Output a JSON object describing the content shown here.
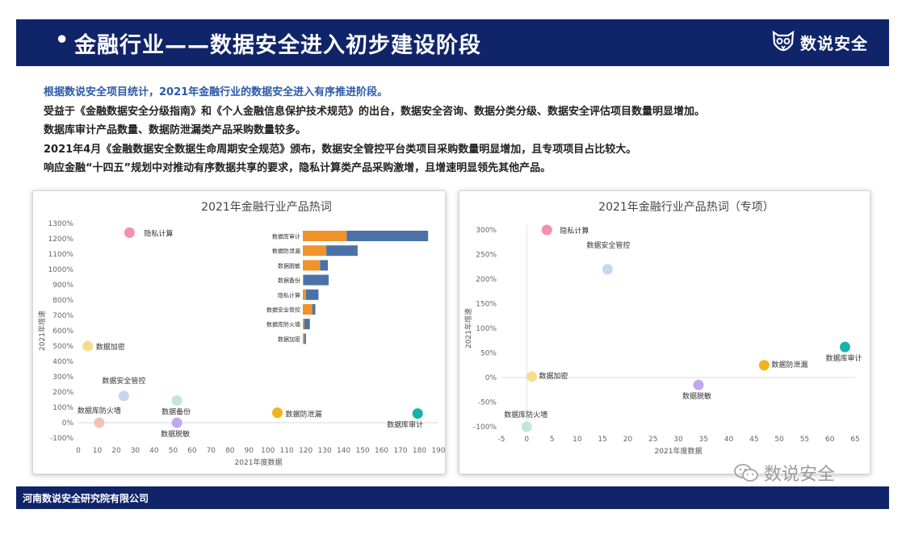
{
  "header": {
    "bullet": "•",
    "title": "金融行业——数据安全进入初步建设阶段",
    "logo_text": "数说安全"
  },
  "intro": {
    "lead": "根据数说安全项目统计，2021年金融行业的数据安全进入有序推进阶段。",
    "lines": [
      "受益于《金融数据安全分级指南》和《个人金融信息保护技术规范》的出台，数据安全咨询、数据分类分级、数据安全评估项目数量明显增加。",
      "数据库审计产品数量、数据防泄漏类产品采购数量较多。",
      "2021年4月《金融数据安全数据生命周期安全规范》颁布，数据安全管控平台类项目采购数量明显增加，且专项项目占比较大。",
      "响应金融“十四五”规划中对推动有序数据共享的要求，隐私计算类产品采购激增，且增速明显领先其他产品。"
    ]
  },
  "chart_data": [
    {
      "type": "scatter",
      "title": "2021年金融行业产品热词",
      "xlabel": "2021年度数据",
      "ylabel": "2021年增速",
      "xlim": [
        0,
        190
      ],
      "ylim": [
        -100,
        1300
      ],
      "x_ticks": [
        "0",
        "10",
        "20",
        "30",
        "40",
        "50",
        "60",
        "70",
        "80",
        "90",
        "100",
        "110",
        "120",
        "130",
        "140",
        "150",
        "160",
        "170",
        "180",
        "190"
      ],
      "y_ticks": [
        "1300%",
        "1200%",
        "1100%",
        "1000%",
        "900%",
        "800%",
        "700%",
        "600%",
        "500%",
        "400%",
        "300%",
        "200%",
        "100%",
        "0%",
        "-100%"
      ],
      "points": [
        {
          "label": "隐私计算",
          "x": 27,
          "y": 1240,
          "color": "#f48fb1"
        },
        {
          "label": "数据加密",
          "x": 5,
          "y": 500,
          "color": "#f7dc8f"
        },
        {
          "label": "数据安全管控",
          "x": 24,
          "y": 175,
          "color": "#c6d6f2"
        },
        {
          "label": "数据备份",
          "x": 52,
          "y": 145,
          "color": "#bfe8d6"
        },
        {
          "label": "数据库防火墙",
          "x": 11,
          "y": 0,
          "color": "#f2c2b3"
        },
        {
          "label": "数据脱敏",
          "x": 52,
          "y": 0,
          "color": "#c3a6f0"
        },
        {
          "label": "数据防泄漏",
          "x": 105,
          "y": 65,
          "color": "#f0b323"
        },
        {
          "label": "数据库审计",
          "x": 179,
          "y": 60,
          "color": "#17b3aa"
        }
      ],
      "inset_bar": {
        "type": "bar",
        "orientation": "horizontal",
        "categories": [
          "数据库审计",
          "数据防泄漏",
          "数据脱敏",
          "数据备份",
          "隐私计算",
          "数据安全管控",
          "数据库防火墙",
          "数据加密"
        ],
        "series": [
          {
            "color": "#f0932b",
            "values": [
              28,
              15,
              11,
              0.5,
              2,
              6,
              1,
              1
            ]
          },
          {
            "color": "#4a72a8",
            "values": [
              52,
              20,
              5,
              16,
              8,
              2,
              3.5,
              1
            ]
          }
        ]
      }
    },
    {
      "type": "scatter",
      "title": "2021年金融行业产品热词（专项）",
      "xlabel": "2021年度数据",
      "ylabel": "2021年增速",
      "xlim": [
        -5,
        65
      ],
      "ylim": [
        -100,
        300
      ],
      "x_ticks": [
        "-5",
        "0",
        "5",
        "10",
        "15",
        "20",
        "25",
        "30",
        "35",
        "40",
        "45",
        "50",
        "55",
        "60",
        "65"
      ],
      "y_ticks": [
        "300%",
        "250%",
        "200%",
        "150%",
        "100%",
        "50%",
        "0%",
        "-50%",
        "-100%"
      ],
      "points": [
        {
          "label": "隐私计算",
          "x": 4,
          "y": 300,
          "color": "#f48fb1"
        },
        {
          "label": "数据安全管控",
          "x": 16,
          "y": 220,
          "color": "#c6d6f2"
        },
        {
          "label": "数据加密",
          "x": 1,
          "y": 2,
          "color": "#f7dc8f"
        },
        {
          "label": "数据库防火墙",
          "x": 0,
          "y": -100,
          "color": "#bfe8d6"
        },
        {
          "label": "数据防泄漏",
          "x": 47,
          "y": 25,
          "color": "#f0b323"
        },
        {
          "label": "数据脱敏",
          "x": 34,
          "y": -15,
          "color": "#c3a6f0"
        },
        {
          "label": "数据库审计",
          "x": 63,
          "y": 62,
          "color": "#17b3aa"
        }
      ]
    }
  ],
  "watermark": {
    "text": "数说安全"
  },
  "footer": {
    "company": "河南数说安全研究院有限公司"
  },
  "colors": {
    "navy": "#10246a",
    "lead_blue": "#2b5aa8",
    "grid": "#e4e4e4"
  }
}
